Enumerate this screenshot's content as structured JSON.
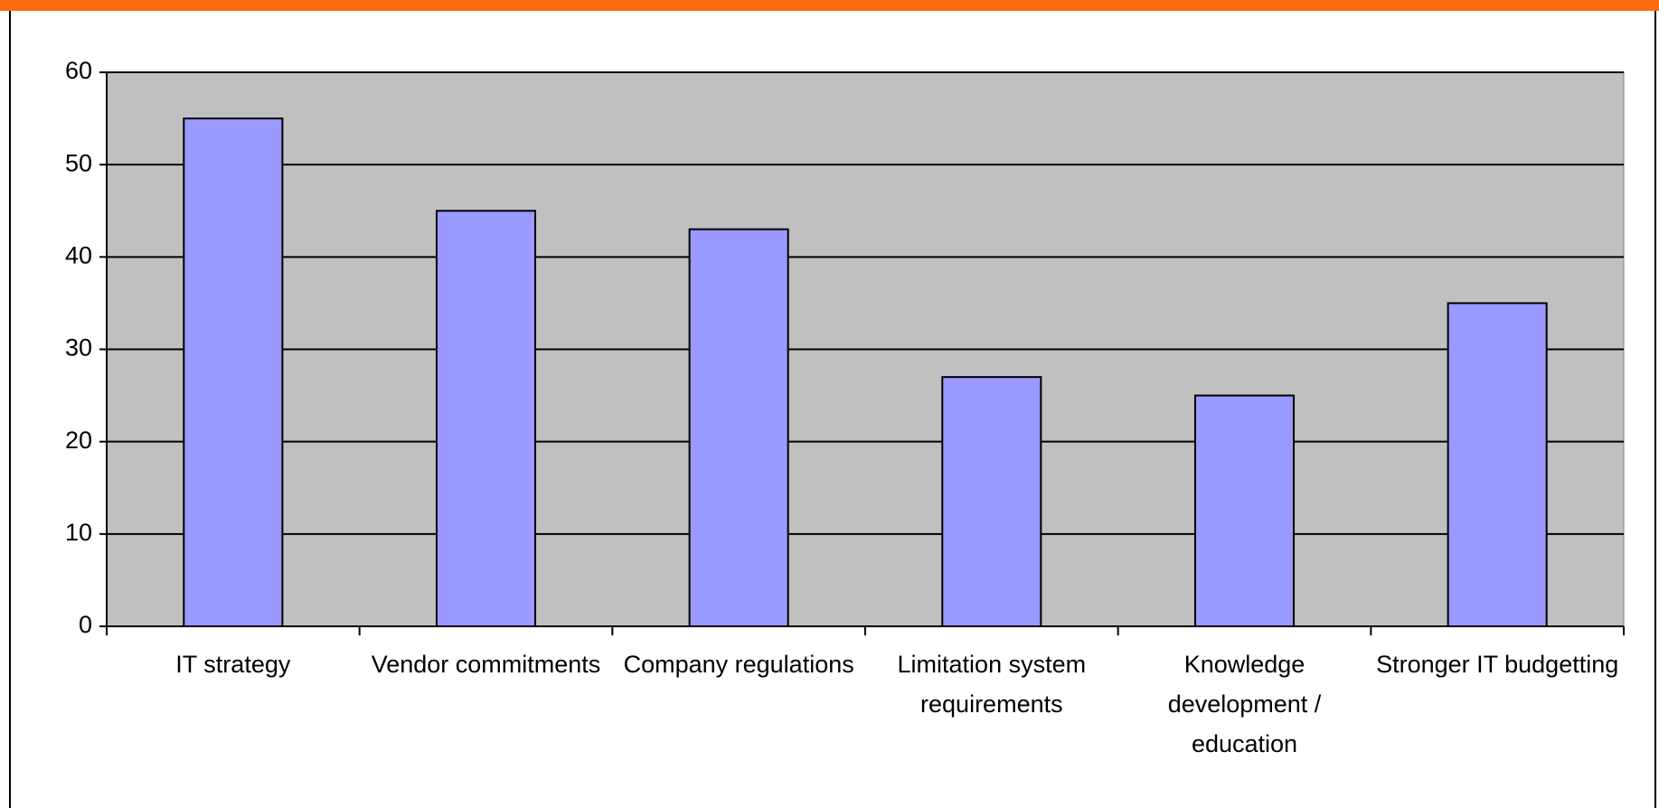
{
  "chart_data": {
    "type": "bar",
    "categories": [
      "IT strategy",
      "Vendor commitments",
      "Company regulations",
      "Limitation system requirements",
      "Knowledge development / education",
      "Stronger IT budgetting"
    ],
    "values": [
      55,
      45,
      43,
      27,
      25,
      35
    ],
    "color": "#9999ff",
    "ylim": [
      0,
      60
    ],
    "yticks": [
      0,
      10,
      20,
      30,
      40,
      50,
      60
    ],
    "grid": true
  }
}
